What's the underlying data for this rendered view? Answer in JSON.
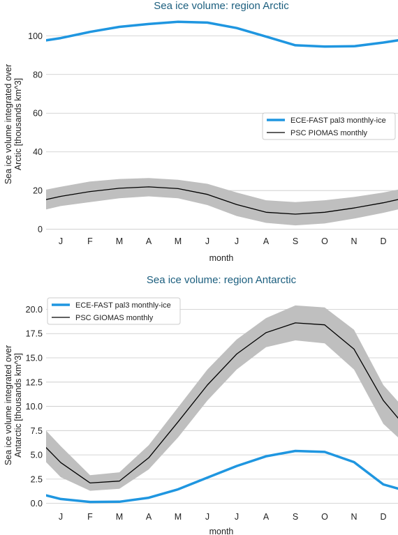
{
  "chart_data": [
    {
      "type": "line",
      "title": "Sea ice volume: region Arctic",
      "xlabel": "month",
      "ylabel": "Sea ice volume integrated over\nArctic [thousands km^3]",
      "categories": [
        "J",
        "F",
        "M",
        "A",
        "M",
        "J",
        "J",
        "A",
        "S",
        "O",
        "N",
        "D"
      ],
      "xlim": [
        0.5,
        12.5
      ],
      "ylim": [
        -3,
        112
      ],
      "yticks": [
        0,
        20,
        40,
        60,
        80,
        100
      ],
      "ytick_labels": [
        "0",
        "20",
        "40",
        "60",
        "80",
        "100"
      ],
      "grid": true,
      "legend_position": "center-right",
      "series": [
        {
          "name": "ECE-FAST pal3 monthly-ice",
          "color": "#1f96e0",
          "values": [
            98.8,
            102.0,
            104.6,
            106.1,
            107.2,
            106.8,
            104.0,
            99.6,
            95.1,
            94.4,
            94.6,
            96.5
          ]
        },
        {
          "name": "PSC PIOMAS monthly",
          "color": "#000000",
          "values": [
            17.0,
            19.5,
            21.2,
            21.9,
            21.0,
            18.0,
            12.8,
            8.8,
            7.8,
            8.8,
            11.0,
            13.7
          ],
          "lower": [
            12.0,
            14.0,
            16.0,
            17.0,
            16.0,
            12.5,
            6.8,
            3.3,
            2.0,
            3.0,
            5.5,
            8.5
          ],
          "upper": [
            22.0,
            24.7,
            26.0,
            26.5,
            25.6,
            23.5,
            19.0,
            15.0,
            14.0,
            15.0,
            16.7,
            19.0
          ],
          "band_color": "#bfbfbf"
        }
      ]
    },
    {
      "type": "line",
      "title": "Sea ice volume: region Antarctic",
      "xlabel": "month",
      "ylabel": "Sea ice volume integrated over\nAntarctic [thousands km^3]",
      "categories": [
        "J",
        "F",
        "M",
        "A",
        "M",
        "J",
        "J",
        "A",
        "S",
        "O",
        "N",
        "D"
      ],
      "xlim": [
        0.5,
        12.5
      ],
      "ylim": [
        -0.6,
        21.4
      ],
      "yticks": [
        0,
        2.5,
        5,
        7.5,
        10,
        12.5,
        15,
        17.5,
        20
      ],
      "ytick_labels": [
        "0.0",
        "2.5",
        "5.0",
        "7.5",
        "10.0",
        "12.5",
        "15.0",
        "17.5",
        "20.0"
      ],
      "grid": true,
      "legend_position": "top-left",
      "series": [
        {
          "name": "ECE-FAST pal3 monthly-ice",
          "color": "#1f96e0",
          "values": [
            0.45,
            0.15,
            0.17,
            0.58,
            1.45,
            2.65,
            3.85,
            4.85,
            5.4,
            5.3,
            4.25,
            1.95
          ],
          "edges": [
            1.2,
            1.1
          ]
        },
        {
          "name": "PSC GIOMAS monthly",
          "color": "#000000",
          "values": [
            4.2,
            2.1,
            2.3,
            4.7,
            8.4,
            12.2,
            15.4,
            17.6,
            18.6,
            18.4,
            15.9,
            10.6
          ],
          "lower": [
            2.7,
            1.3,
            1.5,
            3.5,
            6.8,
            10.6,
            13.8,
            16.1,
            16.8,
            16.5,
            13.8,
            8.2
          ],
          "upper": [
            5.9,
            2.9,
            3.2,
            6.0,
            9.9,
            13.8,
            16.9,
            19.1,
            20.4,
            20.2,
            17.9,
            12.2
          ],
          "edges": [
            7.3,
            7.0
          ],
          "edges_lower": [
            5.8,
            5.4
          ],
          "edges_upper": [
            9.1,
            8.8
          ],
          "band_color": "#bfbfbf"
        }
      ]
    }
  ]
}
